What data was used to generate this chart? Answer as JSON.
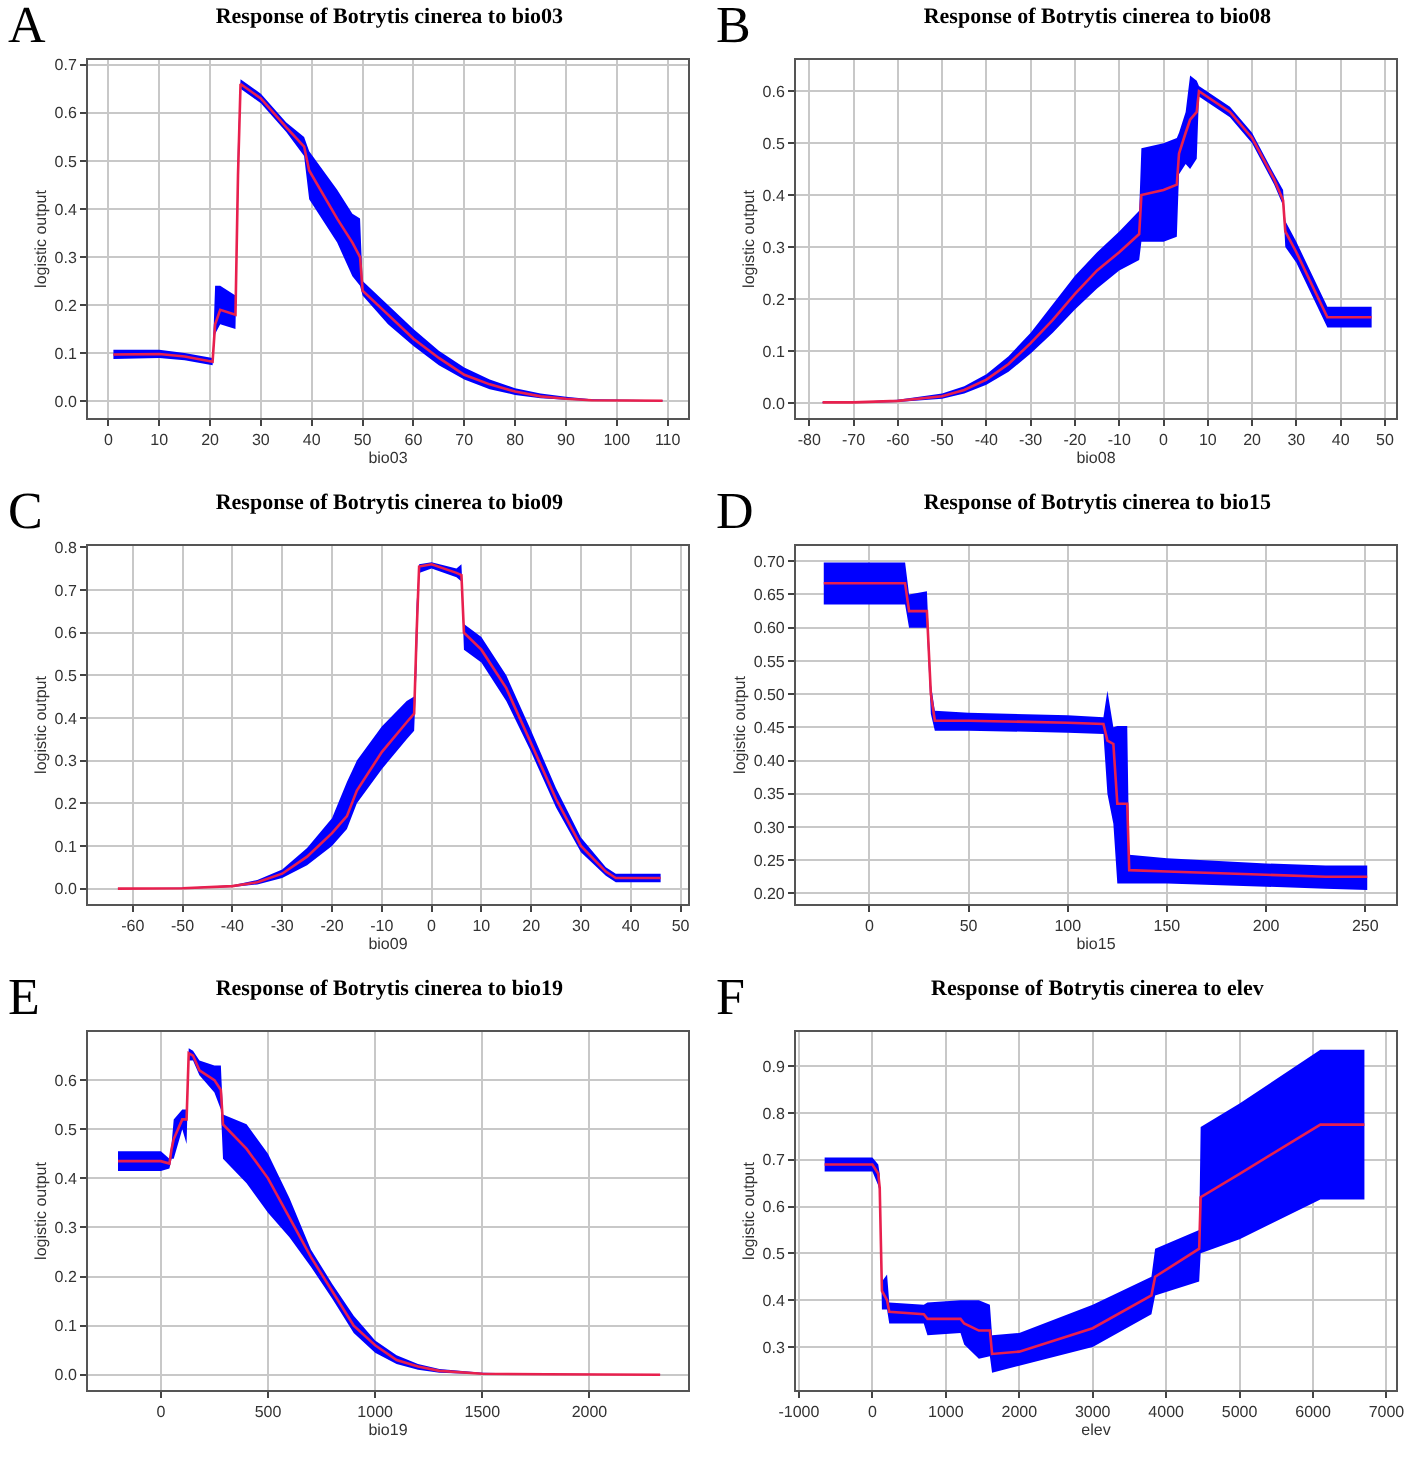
{
  "chart_data": [
    {
      "type": "line",
      "title": "Response of Botrytis cinerea to bio03",
      "xlabel": "bio03",
      "ylabel": "logistic output",
      "annotations": [
        "A"
      ],
      "grid": true,
      "xlim": [
        -4,
        114
      ],
      "xticks": [
        0,
        10,
        20,
        30,
        40,
        50,
        60,
        70,
        80,
        90,
        100,
        110
      ],
      "ylim": [
        -0.035,
        0.71
      ],
      "yticks": [
        {
          "value": 0,
          "label": "0.0"
        },
        0.1,
        0.2,
        0.3,
        0.4,
        0.5,
        0.6,
        0.7
      ],
      "series": [
        {
          "color": "#e8204e",
          "x": [
            1,
            10,
            15,
            20.5,
            21,
            22,
            25,
            25.5,
            26,
            30,
            35,
            38.5,
            39.5,
            45,
            48,
            49.5,
            50,
            55,
            60,
            65,
            70,
            75,
            80,
            85,
            90,
            95,
            109
          ],
          "values": [
            0.097,
            0.098,
            0.093,
            0.082,
            0.16,
            0.19,
            0.18,
            0.47,
            0.66,
            0.63,
            0.57,
            0.53,
            0.48,
            0.38,
            0.33,
            0.3,
            0.23,
            0.18,
            0.13,
            0.09,
            0.055,
            0.035,
            0.02,
            0.01,
            0.005,
            0.002,
            0.001
          ],
          "lower": [
            0.088,
            0.09,
            0.085,
            0.075,
            0.14,
            0.16,
            0.15,
            0.41,
            0.65,
            0.62,
            0.56,
            0.51,
            0.42,
            0.33,
            0.26,
            0.24,
            0.22,
            0.16,
            0.115,
            0.075,
            0.045,
            0.025,
            0.013,
            0.006,
            0.003,
            0.001,
            0
          ],
          "upper": [
            0.107,
            0.107,
            0.1,
            0.09,
            0.24,
            0.24,
            0.22,
            0.54,
            0.67,
            0.64,
            0.58,
            0.55,
            0.52,
            0.44,
            0.39,
            0.38,
            0.25,
            0.2,
            0.15,
            0.105,
            0.07,
            0.045,
            0.027,
            0.016,
            0.009,
            0.004,
            0.002
          ]
        }
      ]
    },
    {
      "type": "line",
      "title": "Response of Botrytis cinerea to bio08",
      "xlabel": "bio08",
      "ylabel": "logistic output",
      "annotations": [
        "B"
      ],
      "grid": true,
      "xlim": [
        -83,
        52.5
      ],
      "xticks": [
        -80,
        -70,
        -60,
        -50,
        -40,
        -30,
        -20,
        -10,
        0,
        10,
        20,
        30,
        40,
        50
      ],
      "ylim": [
        -0.029,
        0.66
      ],
      "yticks": [
        {
          "value": 0,
          "label": "0.0"
        },
        0.1,
        0.2,
        0.3,
        0.4,
        0.5,
        0.6
      ],
      "series": [
        {
          "color": "#e8204e",
          "x": [
            -77,
            -70,
            -60,
            -50,
            -45,
            -40,
            -35,
            -30,
            -25,
            -20,
            -15,
            -10,
            -5.5,
            -5,
            0,
            3,
            3.5,
            5,
            6,
            7.5,
            8,
            15,
            20,
            25,
            27,
            27.5,
            30,
            37,
            47
          ],
          "values": [
            0.001,
            0.001,
            0.004,
            0.013,
            0.025,
            0.045,
            0.075,
            0.115,
            0.16,
            0.21,
            0.255,
            0.29,
            0.325,
            0.4,
            0.41,
            0.42,
            0.48,
            0.52,
            0.545,
            0.56,
            0.6,
            0.56,
            0.51,
            0.43,
            0.39,
            0.33,
            0.29,
            0.165,
            0.165
          ],
          "lower": [
            0,
            0,
            0.002,
            0.008,
            0.018,
            0.035,
            0.06,
            0.095,
            0.135,
            0.18,
            0.22,
            0.255,
            0.275,
            0.31,
            0.31,
            0.32,
            0.44,
            0.46,
            0.45,
            0.47,
            0.59,
            0.55,
            0.5,
            0.42,
            0.38,
            0.3,
            0.27,
            0.145,
            0.145
          ],
          "upper": [
            0.002,
            0.002,
            0.006,
            0.018,
            0.032,
            0.055,
            0.09,
            0.135,
            0.19,
            0.245,
            0.29,
            0.33,
            0.37,
            0.49,
            0.5,
            0.51,
            0.52,
            0.56,
            0.63,
            0.62,
            0.61,
            0.57,
            0.52,
            0.44,
            0.41,
            0.35,
            0.31,
            0.185,
            0.185
          ]
        }
      ]
    },
    {
      "type": "line",
      "title": "Response of Botrytis cinerea to bio09",
      "xlabel": "bio09",
      "ylabel": "logistic output",
      "annotations": [
        "C"
      ],
      "grid": true,
      "xlim": [
        -69,
        51.5
      ],
      "xticks": [
        -60,
        -50,
        -40,
        -30,
        -20,
        -10,
        0,
        10,
        20,
        30,
        40,
        50
      ],
      "ylim": [
        -0.036,
        0.803
      ],
      "yticks": [
        {
          "value": 0,
          "label": "0.0"
        },
        0.1,
        0.2,
        0.3,
        0.4,
        0.5,
        0.6,
        0.7,
        0.8
      ],
      "series": [
        {
          "color": "#e8204e",
          "x": [
            -63,
            -50,
            -40,
            -35,
            -30,
            -25,
            -20,
            -17,
            -15,
            -10,
            -5,
            -3.5,
            -3,
            -2.5,
            0,
            5,
            6,
            6.5,
            10,
            15,
            20,
            25,
            30,
            35,
            37,
            46
          ],
          "values": [
            0,
            0.001,
            0.006,
            0.015,
            0.035,
            0.075,
            0.13,
            0.17,
            0.23,
            0.32,
            0.39,
            0.41,
            0.6,
            0.755,
            0.76,
            0.74,
            0.735,
            0.6,
            0.56,
            0.47,
            0.34,
            0.21,
            0.1,
            0.04,
            0.025,
            0.025
          ],
          "lower": [
            0,
            0,
            0.004,
            0.01,
            0.025,
            0.055,
            0.1,
            0.14,
            0.2,
            0.28,
            0.35,
            0.37,
            0.52,
            0.74,
            0.75,
            0.73,
            0.72,
            0.56,
            0.53,
            0.44,
            0.32,
            0.19,
            0.085,
            0.03,
            0.015,
            0.015
          ],
          "upper": [
            0.001,
            0.002,
            0.008,
            0.02,
            0.045,
            0.095,
            0.165,
            0.25,
            0.3,
            0.38,
            0.44,
            0.45,
            0.67,
            0.76,
            0.765,
            0.75,
            0.76,
            0.62,
            0.59,
            0.5,
            0.37,
            0.235,
            0.12,
            0.05,
            0.035,
            0.035
          ]
        }
      ]
    },
    {
      "type": "line",
      "title": "Response of Botrytis cinerea to bio15",
      "xlabel": "bio15",
      "ylabel": "logistic output",
      "annotations": [
        "D"
      ],
      "grid": true,
      "xlim": [
        -37,
        265.5
      ],
      "xticks": [
        0,
        50,
        100,
        150,
        200,
        250
      ],
      "ylim": [
        0.184,
        0.723
      ],
      "yticks": [
        {
          "value": 0.2,
          "label": "0.20"
        },
        0.25,
        {
          "value": 0.3,
          "label": "0.30"
        },
        0.35,
        {
          "value": 0.4,
          "label": "0.40"
        },
        0.45,
        {
          "value": 0.5,
          "label": "0.50"
        },
        0.55,
        {
          "value": 0.6,
          "label": "0.60"
        },
        0.65,
        {
          "value": 0.7,
          "label": "0.70"
        }
      ],
      "series": [
        {
          "color": "#e8204e",
          "x": [
            -23,
            18,
            20,
            29,
            31,
            33,
            50,
            100,
            118,
            120,
            123,
            125,
            130,
            131,
            150,
            200,
            230,
            251
          ],
          "values": [
            0.667,
            0.667,
            0.625,
            0.625,
            0.5,
            0.46,
            0.46,
            0.457,
            0.455,
            0.43,
            0.425,
            0.335,
            0.335,
            0.235,
            0.233,
            0.228,
            0.225,
            0.225
          ],
          "lower": [
            0.635,
            0.635,
            0.6,
            0.6,
            0.47,
            0.445,
            0.445,
            0.442,
            0.44,
            0.35,
            0.305,
            0.215,
            0.215,
            0.215,
            0.215,
            0.21,
            0.207,
            0.205
          ],
          "upper": [
            0.698,
            0.698,
            0.65,
            0.655,
            0.515,
            0.475,
            0.472,
            0.468,
            0.465,
            0.505,
            0.45,
            0.452,
            0.452,
            0.258,
            0.253,
            0.245,
            0.242,
            0.242
          ]
        }
      ]
    },
    {
      "type": "line",
      "title": "Response of Botrytis cinerea to bio19",
      "xlabel": "bio19",
      "ylabel": "logistic output",
      "annotations": [
        "E"
      ],
      "grid": true,
      "xlim": [
        -340,
        2460
      ],
      "xticks": [
        0,
        500,
        1000,
        1500,
        2000
      ],
      "ylim": [
        -0.031,
        0.698
      ],
      "yticks": [
        {
          "value": 0,
          "label": "0.0"
        },
        0.1,
        0.2,
        0.3,
        0.4,
        0.5,
        0.6
      ],
      "series": [
        {
          "color": "#e8204e",
          "x": [
            -200,
            0,
            40,
            50,
            60,
            100,
            120,
            130,
            150,
            180,
            250,
            280,
            290,
            400,
            500,
            600,
            700,
            800,
            900,
            1000,
            1100,
            1200,
            1300,
            1500,
            1800,
            2330
          ],
          "values": [
            0.435,
            0.435,
            0.43,
            0.46,
            0.48,
            0.52,
            0.52,
            0.655,
            0.65,
            0.62,
            0.6,
            0.58,
            0.51,
            0.46,
            0.4,
            0.32,
            0.24,
            0.17,
            0.1,
            0.06,
            0.03,
            0.017,
            0.008,
            0.002,
            0.001,
            0
          ],
          "lower": [
            0.415,
            0.415,
            0.42,
            0.44,
            0.44,
            0.5,
            0.47,
            0.64,
            0.64,
            0.61,
            0.575,
            0.54,
            0.44,
            0.39,
            0.33,
            0.28,
            0.22,
            0.155,
            0.085,
            0.045,
            0.022,
            0.01,
            0.004,
            0.001,
            0,
            0
          ],
          "upper": [
            0.455,
            0.455,
            0.44,
            0.47,
            0.52,
            0.54,
            0.54,
            0.665,
            0.66,
            0.64,
            0.63,
            0.63,
            0.53,
            0.51,
            0.45,
            0.36,
            0.255,
            0.185,
            0.12,
            0.07,
            0.04,
            0.022,
            0.012,
            0.004,
            0.002,
            0.001
          ]
        }
      ]
    },
    {
      "type": "line",
      "title": "Response of Botrytis cinerea to elev",
      "xlabel": "elev",
      "ylabel": "logistic output",
      "annotations": [
        "F"
      ],
      "grid": true,
      "xlim": [
        -1040,
        7130
      ],
      "xticks": [
        -1000,
        0,
        1000,
        2000,
        3000,
        4000,
        5000,
        6000,
        7000
      ],
      "ylim": [
        0.208,
        0.973
      ],
      "yticks": [
        0.3,
        0.4,
        0.5,
        0.6,
        0.7,
        0.8,
        0.9
      ],
      "series": [
        {
          "color": "#e8204e",
          "x": [
            -650,
            0,
            80,
            100,
            130,
            200,
            230,
            700,
            750,
            1200,
            1250,
            1450,
            1600,
            1630,
            2000,
            3000,
            3800,
            3850,
            4450,
            4470,
            5000,
            6100,
            6700
          ],
          "values": [
            0.69,
            0.69,
            0.67,
            0.64,
            0.42,
            0.4,
            0.375,
            0.37,
            0.36,
            0.36,
            0.35,
            0.335,
            0.335,
            0.285,
            0.29,
            0.34,
            0.41,
            0.45,
            0.51,
            0.62,
            0.67,
            0.775,
            0.775
          ],
          "lower": [
            0.675,
            0.675,
            0.645,
            0.63,
            0.38,
            0.38,
            0.35,
            0.35,
            0.325,
            0.33,
            0.305,
            0.275,
            0.28,
            0.245,
            0.26,
            0.3,
            0.37,
            0.41,
            0.44,
            0.5,
            0.53,
            0.615,
            0.615
          ],
          "upper": [
            0.705,
            0.705,
            0.69,
            0.67,
            0.44,
            0.455,
            0.395,
            0.39,
            0.395,
            0.4,
            0.4,
            0.4,
            0.39,
            0.325,
            0.33,
            0.39,
            0.45,
            0.51,
            0.55,
            0.77,
            0.82,
            0.935,
            0.935
          ]
        }
      ]
    }
  ]
}
